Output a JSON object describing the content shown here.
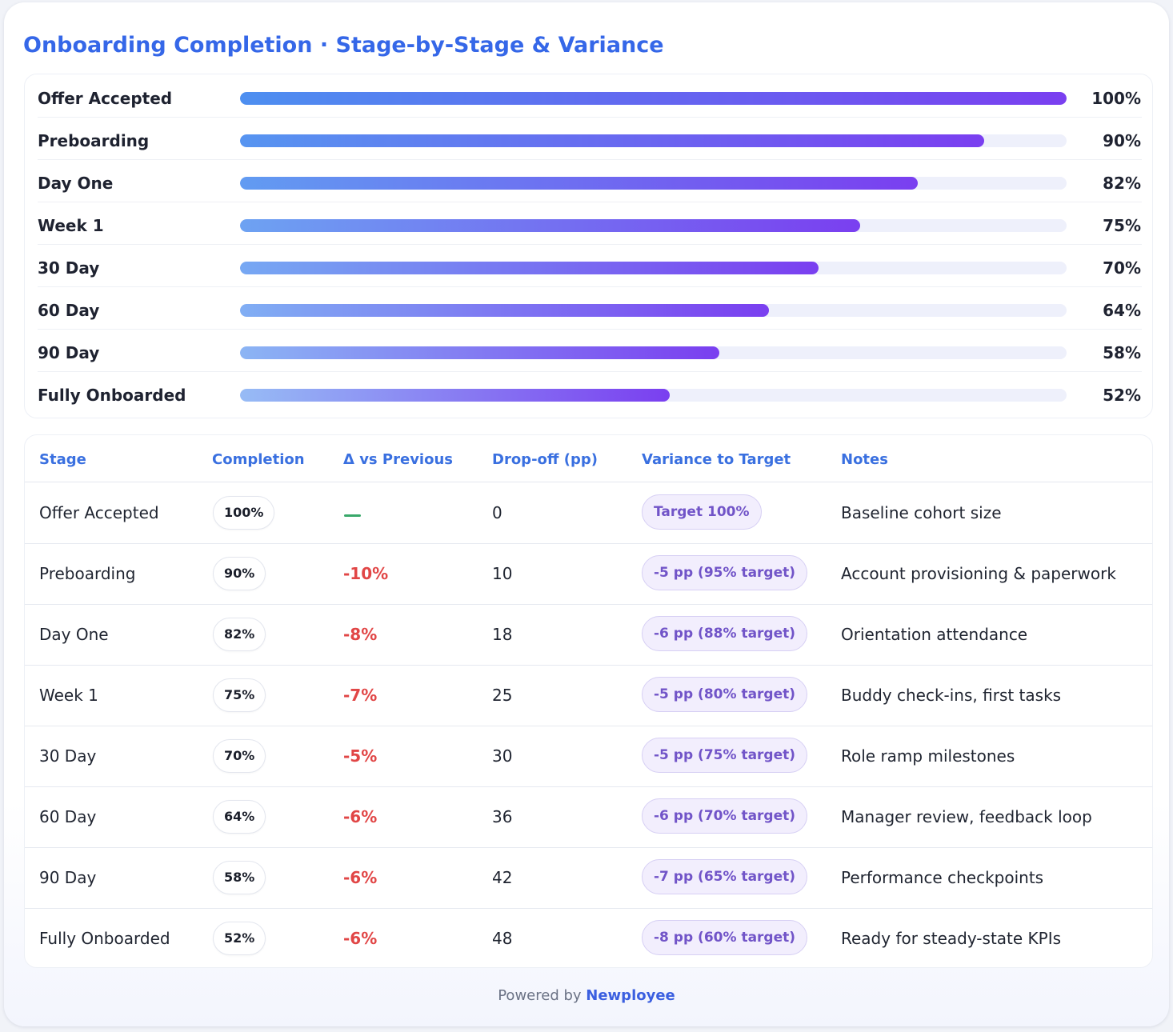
{
  "title": "Onboarding Completion · Stage-by-Stage & Variance",
  "chart_data": {
    "type": "bar",
    "orientation": "horizontal",
    "title": "Onboarding Completion · Stage-by-Stage & Variance",
    "categories": [
      "Offer Accepted",
      "Preboarding",
      "Day One",
      "Week 1",
      "30 Day",
      "60 Day",
      "90 Day",
      "Fully Onboarded"
    ],
    "values": [
      100,
      90,
      82,
      75,
      70,
      64,
      58,
      52
    ],
    "value_labels": [
      "100%",
      "90%",
      "82%",
      "75%",
      "70%",
      "64%",
      "58%",
      "52%"
    ],
    "xlim": [
      0,
      100
    ],
    "unit": "%"
  },
  "table": {
    "headers": {
      "stage": "Stage",
      "completion": "Completion",
      "delta": "Δ vs Previous",
      "dropoff": "Drop-off (pp)",
      "variance": "Variance to Target",
      "notes": "Notes"
    },
    "rows": [
      {
        "stage": "Offer Accepted",
        "completion": "100%",
        "delta": "",
        "dropoff": "0",
        "variance": "Target 100%",
        "notes": "Baseline cohort size"
      },
      {
        "stage": "Preboarding",
        "completion": "90%",
        "delta": "-10%",
        "dropoff": "10",
        "variance": "-5 pp (95% target)",
        "notes": "Account provisioning & paperwork"
      },
      {
        "stage": "Day One",
        "completion": "82%",
        "delta": "-8%",
        "dropoff": "18",
        "variance": "-6 pp (88% target)",
        "notes": "Orientation attendance"
      },
      {
        "stage": "Week 1",
        "completion": "75%",
        "delta": "-7%",
        "dropoff": "25",
        "variance": "-5 pp (80% target)",
        "notes": "Buddy check-ins, first tasks"
      },
      {
        "stage": "30 Day",
        "completion": "70%",
        "delta": "-5%",
        "dropoff": "30",
        "variance": "-5 pp (75% target)",
        "notes": "Role ramp milestones"
      },
      {
        "stage": "60 Day",
        "completion": "64%",
        "delta": "-6%",
        "dropoff": "36",
        "variance": "-6 pp (70% target)",
        "notes": "Manager review, feedback loop"
      },
      {
        "stage": "90 Day",
        "completion": "58%",
        "delta": "-6%",
        "dropoff": "42",
        "variance": "-7 pp (65% target)",
        "notes": "Performance checkpoints"
      },
      {
        "stage": "Fully Onboarded",
        "completion": "52%",
        "delta": "-6%",
        "dropoff": "48",
        "variance": "-8 pp (60% target)",
        "notes": "Ready for steady-state KPIs"
      }
    ]
  },
  "footer": {
    "prefix": "Powered by",
    "brand": "Newployee"
  },
  "colors": {
    "accent": "#3567e8",
    "bar_start": "#4d8ff0",
    "bar_end": "#7a3ff0",
    "negative": "#e14646",
    "neutral": "#39a86a",
    "tag_text": "#7154c8"
  }
}
